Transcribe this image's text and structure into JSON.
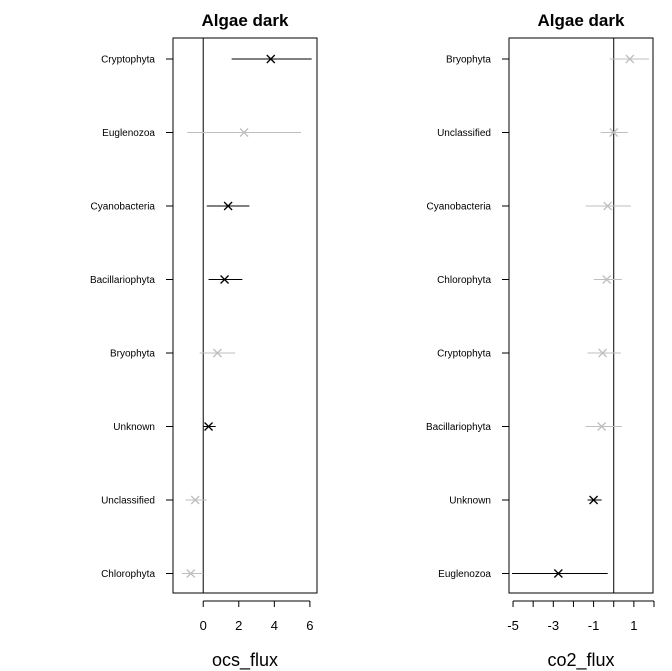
{
  "chart_data": [
    {
      "type": "scatter",
      "title": "Algae dark",
      "xlabel": "ocs_flux",
      "ylabel": "",
      "xlim": [
        -1.7,
        6.4
      ],
      "xticks": [
        0,
        2,
        4,
        6
      ],
      "xtick_labels": [
        "0",
        "2",
        "4",
        "6"
      ],
      "reference_line": 0,
      "categories": [
        "Cryptophyta",
        "Euglenozoa",
        "Cyanobacteria",
        "Bacillariophyta",
        "Bryophyta",
        "Unknown",
        "Unclassified",
        "Chlorophyta"
      ],
      "estimates": [
        3.8,
        2.3,
        1.4,
        1.2,
        0.8,
        0.3,
        -0.45,
        -0.7
      ],
      "lower": [
        1.6,
        -0.9,
        0.2,
        0.3,
        -0.2,
        0.0,
        -1.0,
        -1.2
      ],
      "upper": [
        6.1,
        5.5,
        2.6,
        2.2,
        1.8,
        0.7,
        0.2,
        0.0
      ],
      "significant": [
        true,
        false,
        true,
        true,
        false,
        true,
        false,
        false
      ],
      "colors": {
        "significant": "#000000",
        "nonsignificant": "#bfbfbf"
      }
    },
    {
      "type": "scatter",
      "title": "Algae dark",
      "xlabel": "co2_flux",
      "ylabel": "",
      "xlim": [
        -5.2,
        1.95
      ],
      "xticks": [
        -5,
        -4,
        -3,
        -2,
        -1,
        0,
        1,
        2
      ],
      "xtick_labels": [
        "-5",
        "",
        "-3",
        "",
        "-1",
        "",
        "1",
        ""
      ],
      "reference_line": 0,
      "categories": [
        "Bryophyta",
        "Unclassified",
        "Cyanobacteria",
        "Chlorophyta",
        "Cryptophyta",
        "Bacillariophyta",
        "Unknown",
        "Euglenozoa"
      ],
      "estimates": [
        0.8,
        0.0,
        -0.3,
        -0.35,
        -0.55,
        -0.6,
        -1.0,
        -2.75
      ],
      "lower": [
        -0.2,
        -0.65,
        -1.4,
        -1.0,
        -1.3,
        -1.4,
        -1.3,
        -5.05
      ],
      "upper": [
        1.75,
        0.7,
        0.85,
        0.4,
        0.35,
        0.4,
        -0.6,
        -0.3
      ],
      "significant": [
        false,
        false,
        false,
        false,
        false,
        false,
        true,
        true
      ],
      "colors": {
        "significant": "#000000",
        "nonsignificant": "#bfbfbf"
      }
    }
  ]
}
